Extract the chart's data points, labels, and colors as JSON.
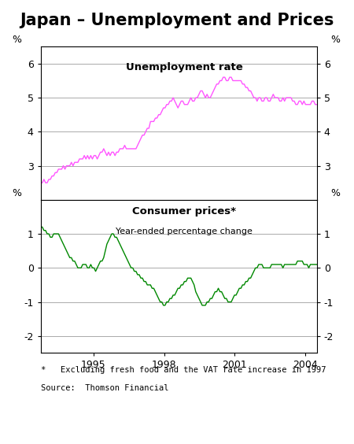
{
  "title": "Japan – Unemployment and Prices",
  "title_fontsize": 15,
  "background_color": "#ffffff",
  "unemployment_color": "#ff55ff",
  "cpi_color": "#008800",
  "unemployment_label": "Unemployment rate",
  "cpi_label": "Consumer prices*",
  "cpi_sublabel": "Year-ended percentage change",
  "footnote": "*   Excluding fresh food and the VAT rate increase in 1997",
  "source": "Source:  Thomson Financial",
  "unemp_ylim": [
    2.0,
    6.5
  ],
  "unemp_yticks": [
    3,
    4,
    5,
    6
  ],
  "cpi_ylim": [
    -2.5,
    2.0
  ],
  "cpi_yticks": [
    -2,
    -1,
    0,
    1
  ],
  "xstart": 1992.75,
  "xend": 2004.5,
  "xticks": [
    1995,
    1998,
    2001,
    2004
  ],
  "unemployment_data": [
    2.5,
    2.5,
    2.6,
    2.5,
    2.5,
    2.6,
    2.6,
    2.7,
    2.7,
    2.8,
    2.8,
    2.9,
    2.9,
    2.9,
    3.0,
    2.9,
    3.0,
    3.0,
    3.0,
    3.1,
    3.0,
    3.1,
    3.1,
    3.1,
    3.2,
    3.2,
    3.2,
    3.3,
    3.2,
    3.3,
    3.2,
    3.3,
    3.2,
    3.3,
    3.3,
    3.2,
    3.3,
    3.4,
    3.4,
    3.5,
    3.4,
    3.3,
    3.4,
    3.3,
    3.4,
    3.4,
    3.3,
    3.4,
    3.4,
    3.5,
    3.5,
    3.5,
    3.6,
    3.5,
    3.5,
    3.5,
    3.5,
    3.5,
    3.5,
    3.5,
    3.6,
    3.7,
    3.8,
    3.9,
    3.9,
    4.0,
    4.1,
    4.1,
    4.3,
    4.3,
    4.3,
    4.4,
    4.4,
    4.5,
    4.5,
    4.6,
    4.7,
    4.7,
    4.8,
    4.8,
    4.9,
    4.9,
    5.0,
    4.9,
    4.8,
    4.7,
    4.8,
    4.9,
    4.9,
    4.8,
    4.8,
    4.8,
    4.9,
    5.0,
    4.9,
    4.9,
    5.0,
    5.0,
    5.1,
    5.2,
    5.2,
    5.1,
    5.0,
    5.1,
    5.0,
    5.0,
    5.1,
    5.2,
    5.3,
    5.4,
    5.4,
    5.5,
    5.5,
    5.6,
    5.6,
    5.5,
    5.5,
    5.6,
    5.6,
    5.5,
    5.5,
    5.5,
    5.5,
    5.5,
    5.5,
    5.4,
    5.4,
    5.3,
    5.3,
    5.2,
    5.2,
    5.1,
    5.0,
    5.0,
    4.9,
    5.0,
    5.0,
    4.9,
    4.9,
    5.0,
    5.0,
    4.9,
    4.9,
    5.0,
    5.1,
    5.0,
    5.0,
    5.0,
    4.9,
    4.9,
    5.0,
    4.9,
    5.0,
    5.0,
    5.0,
    5.0,
    4.9,
    4.9,
    4.8,
    4.8,
    4.9,
    4.9,
    4.8,
    4.9,
    4.8,
    4.8,
    4.8,
    4.8,
    4.9,
    4.9,
    4.8,
    4.8
  ],
  "cpi_data": [
    1.2,
    1.2,
    1.1,
    1.1,
    1.0,
    1.0,
    0.9,
    0.9,
    1.0,
    1.0,
    1.0,
    1.0,
    0.9,
    0.8,
    0.7,
    0.6,
    0.5,
    0.4,
    0.3,
    0.3,
    0.2,
    0.2,
    0.1,
    0.0,
    0.0,
    0.0,
    0.1,
    0.1,
    0.1,
    0.0,
    0.0,
    0.1,
    0.0,
    0.0,
    -0.1,
    0.0,
    0.1,
    0.2,
    0.2,
    0.3,
    0.5,
    0.7,
    0.8,
    0.9,
    1.0,
    1.0,
    0.9,
    0.9,
    0.8,
    0.7,
    0.6,
    0.5,
    0.4,
    0.3,
    0.2,
    0.1,
    0.0,
    0.0,
    -0.1,
    -0.1,
    -0.2,
    -0.2,
    -0.3,
    -0.3,
    -0.4,
    -0.4,
    -0.5,
    -0.5,
    -0.5,
    -0.6,
    -0.6,
    -0.7,
    -0.8,
    -0.9,
    -1.0,
    -1.0,
    -1.1,
    -1.1,
    -1.0,
    -1.0,
    -0.9,
    -0.9,
    -0.8,
    -0.8,
    -0.7,
    -0.6,
    -0.6,
    -0.5,
    -0.5,
    -0.4,
    -0.4,
    -0.3,
    -0.3,
    -0.3,
    -0.4,
    -0.5,
    -0.7,
    -0.8,
    -0.9,
    -1.0,
    -1.1,
    -1.1,
    -1.1,
    -1.0,
    -1.0,
    -0.9,
    -0.9,
    -0.8,
    -0.7,
    -0.7,
    -0.6,
    -0.7,
    -0.7,
    -0.8,
    -0.9,
    -0.9,
    -1.0,
    -1.0,
    -1.0,
    -0.9,
    -0.8,
    -0.8,
    -0.7,
    -0.6,
    -0.6,
    -0.5,
    -0.5,
    -0.4,
    -0.4,
    -0.3,
    -0.3,
    -0.2,
    -0.1,
    0.0,
    0.0,
    0.1,
    0.1,
    0.1,
    0.0,
    0.0,
    0.0,
    0.0,
    0.0,
    0.1,
    0.1,
    0.1,
    0.1,
    0.1,
    0.1,
    0.1,
    0.0,
    0.1,
    0.1,
    0.1,
    0.1,
    0.1,
    0.1,
    0.1,
    0.1,
    0.2,
    0.2,
    0.2,
    0.2,
    0.1,
    0.1,
    0.1,
    0.0,
    0.1,
    0.1,
    0.1,
    0.1,
    0.1
  ]
}
